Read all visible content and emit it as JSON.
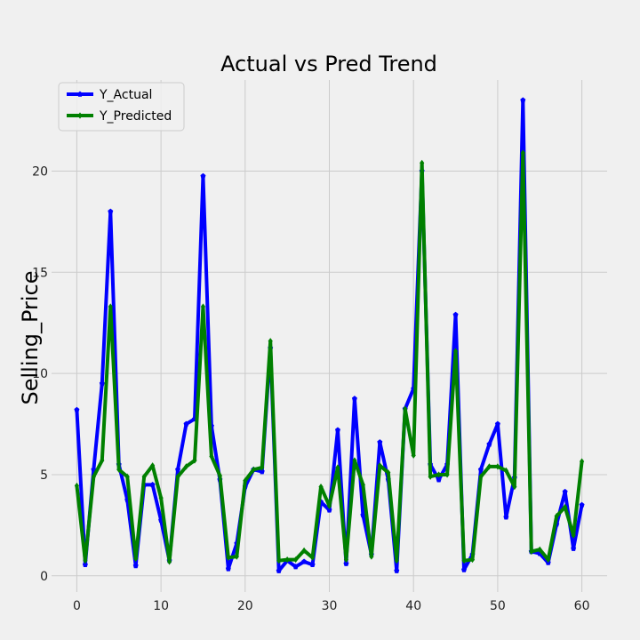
{
  "chart_data": {
    "type": "line",
    "title": "Actual vs Pred Trend",
    "xlabel": "",
    "ylabel": "Selling_Price",
    "xlim": [
      -3,
      63
    ],
    "ylim": [
      -0.8,
      24.5
    ],
    "xticks": [
      0,
      10,
      20,
      30,
      40,
      50,
      60
    ],
    "yticks": [
      0,
      5,
      10,
      15,
      20
    ],
    "grid": true,
    "legend_position": "top-left",
    "x": [
      0,
      1,
      2,
      3,
      4,
      5,
      6,
      7,
      8,
      9,
      10,
      11,
      12,
      13,
      14,
      15,
      16,
      17,
      18,
      19,
      20,
      21,
      22,
      23,
      24,
      25,
      26,
      27,
      28,
      29,
      30,
      31,
      32,
      33,
      34,
      35,
      36,
      37,
      38,
      39,
      40,
      41,
      42,
      43,
      44,
      45,
      46,
      47,
      48,
      49,
      50,
      51,
      52,
      53,
      54,
      55,
      56,
      57,
      58,
      59,
      60
    ],
    "series": [
      {
        "name": "Y_Actual",
        "color": "#0000ff",
        "values": [
          8.2,
          0.55,
          5.25,
          9.5,
          18.0,
          5.5,
          3.75,
          0.5,
          4.5,
          4.5,
          2.75,
          0.75,
          5.25,
          7.5,
          7.75,
          19.75,
          7.4,
          4.75,
          0.35,
          1.6,
          4.4,
          5.25,
          5.15,
          11.25,
          0.25,
          0.75,
          0.45,
          0.7,
          0.55,
          3.65,
          3.25,
          7.2,
          0.6,
          8.75,
          3.0,
          1.05,
          6.6,
          4.75,
          0.25,
          8.25,
          9.25,
          20.0,
          5.5,
          4.75,
          5.5,
          12.9,
          0.3,
          1.05,
          5.25,
          6.5,
          7.5,
          2.9,
          4.85,
          23.5,
          1.2,
          1.1,
          0.65,
          2.55,
          4.15,
          1.35,
          3.5
        ]
      },
      {
        "name": "Y_Predicted",
        "color": "#008000",
        "values": [
          4.45,
          0.75,
          4.9,
          5.7,
          13.3,
          5.25,
          4.9,
          0.85,
          4.9,
          5.45,
          3.85,
          0.7,
          4.9,
          5.4,
          5.7,
          13.3,
          5.9,
          4.95,
          0.9,
          0.95,
          4.7,
          5.25,
          5.35,
          11.6,
          0.75,
          0.8,
          0.8,
          1.25,
          0.9,
          4.4,
          3.45,
          5.35,
          0.8,
          5.7,
          4.5,
          0.95,
          5.45,
          5.1,
          0.75,
          8.25,
          5.95,
          20.4,
          4.9,
          5.0,
          5.0,
          11.1,
          0.75,
          0.8,
          4.9,
          5.4,
          5.4,
          5.2,
          4.4,
          20.9,
          1.2,
          1.3,
          0.8,
          2.95,
          3.4,
          2.0,
          5.65
        ]
      }
    ]
  }
}
